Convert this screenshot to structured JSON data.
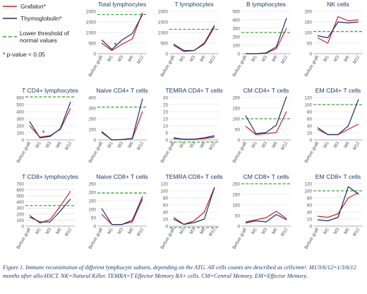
{
  "legend": {
    "grafalon": "Grafalon*",
    "thymoglobulin": "Thymoglobulin*",
    "threshold": "Lower threshold of normal values",
    "pvalue": "* p-value < 0.05"
  },
  "colors": {
    "grafalon": "#c0262d",
    "thymoglobulin": "#1f2f6b",
    "threshold": "#3aa635",
    "grid": "#d9d9d9",
    "axis": "#9a9a9a",
    "title": "#1f3864"
  },
  "caption": "Figure 1. Immune reconstitution of different lymphocyte subsets, depending on the ATG. All cells counts are described as cells/mm³. M1/3/6/12=1/3/6/12 months after allo-HSCT. NK=Natural Killer. TEMRA=T Effector Memory RA+ cells. CM=Central Memory. EM=Effector Memory.",
  "chart_data": [
    {
      "type": "line",
      "title": "Total lymphocytes",
      "categories": [
        "Before graft",
        "M1",
        "M3",
        "M6",
        "M12"
      ],
      "ylim": [
        0,
        2000
      ],
      "yticks": [
        0,
        500,
        1000,
        1500,
        2000
      ],
      "threshold": 1850,
      "star_at": 1,
      "series": [
        {
          "name": "Grafalon*",
          "values": [
            500,
            150,
            450,
            700,
            1950
          ]
        },
        {
          "name": "Thymoglobulin*",
          "values": [
            650,
            200,
            650,
            950,
            1850
          ]
        }
      ]
    },
    {
      "type": "line",
      "title": "T lymphocytes",
      "categories": [
        "Before graft",
        "M1",
        "M3",
        "M6",
        "M12"
      ],
      "ylim": [
        0,
        2000
      ],
      "yticks": [
        0,
        500,
        1000,
        1500,
        2000
      ],
      "threshold": 1150,
      "series": [
        {
          "name": "Grafalon*",
          "values": [
            400,
            100,
            150,
            450,
            1250
          ]
        },
        {
          "name": "Thymoglobulin*",
          "values": [
            450,
            150,
            150,
            500,
            1350
          ]
        }
      ]
    },
    {
      "type": "line",
      "title": "B lymphocytes",
      "categories": [
        "Before graft",
        "M1",
        "M3",
        "M6",
        "M12"
      ],
      "ylim": [
        0,
        500
      ],
      "yticks": [
        0,
        100,
        200,
        300,
        400,
        500
      ],
      "threshold": 250,
      "series": [
        {
          "name": "Grafalon*",
          "values": [
            0,
            0,
            5,
            60,
            300
          ]
        },
        {
          "name": "Thymoglobulin*",
          "values": [
            0,
            0,
            10,
            80,
            420
          ]
        }
      ]
    },
    {
      "type": "line",
      "title": "NK cells",
      "categories": [
        "Before graft",
        "M1",
        "M3",
        "M6",
        "M12"
      ],
      "ylim": [
        0,
        200
      ],
      "yticks": [
        0,
        50,
        100,
        150,
        200
      ],
      "threshold": 105,
      "series": [
        {
          "name": "Grafalon*",
          "values": [
            75,
            50,
            175,
            155,
            160
          ]
        },
        {
          "name": "Thymoglobulin*",
          "values": [
            85,
            75,
            150,
            145,
            150
          ]
        }
      ]
    },
    {
      "type": "line",
      "title": "T CD4+ lymphocytes",
      "categories": [
        "Before graft",
        "M1",
        "M3",
        "M6",
        "M12"
      ],
      "ylim": [
        0,
        600
      ],
      "yticks": [
        0,
        100,
        200,
        300,
        400,
        500,
        600
      ],
      "threshold": 610,
      "star_at": 1,
      "series": [
        {
          "name": "Grafalon*",
          "values": [
            200,
            40,
            60,
            150,
            450
          ]
        },
        {
          "name": "Thymoglobulin*",
          "values": [
            260,
            30,
            50,
            160,
            540
          ]
        }
      ]
    },
    {
      "type": "line",
      "title": "Naive CD4+ T cells",
      "categories": [
        "Before graft",
        "M1",
        "M3",
        "M6",
        "M12"
      ],
      "ylim": [
        0,
        400
      ],
      "yticks": [
        0,
        100,
        200,
        300,
        400
      ],
      "threshold": 310,
      "series": [
        {
          "name": "Grafalon*",
          "values": [
            70,
            0,
            5,
            10,
            270
          ]
        },
        {
          "name": "Thymoglobulin*",
          "values": [
            80,
            0,
            5,
            15,
            390
          ]
        }
      ]
    },
    {
      "type": "line",
      "title": "TEMRA CD4+ T cells",
      "categories": [
        "Before graft",
        "M1",
        "M3",
        "M6",
        "M12"
      ],
      "ylim": [
        0,
        30
      ],
      "yticks": [
        0,
        5,
        10,
        15,
        20,
        25,
        30
      ],
      "threshold": -1.5,
      "series": [
        {
          "name": "Grafalon*",
          "values": [
            1,
            0.5,
            0.5,
            1,
            2
          ]
        },
        {
          "name": "Thymoglobulin*",
          "values": [
            1.5,
            0.5,
            0.5,
            1.5,
            3
          ]
        }
      ]
    },
    {
      "type": "line",
      "title": "CM CD4+ T cells",
      "categories": [
        "Before graft",
        "M1",
        "M3",
        "M6",
        "M12"
      ],
      "ylim": [
        0,
        200
      ],
      "yticks": [
        0,
        50,
        100,
        150,
        200
      ],
      "threshold": 100,
      "series": [
        {
          "name": "Grafalon*",
          "values": [
            65,
            25,
            30,
            35,
            135
          ]
        },
        {
          "name": "Thymoglobulin*",
          "values": [
            115,
            30,
            35,
            70,
            205
          ]
        }
      ]
    },
    {
      "type": "line",
      "title": "EM CD4+ T cells",
      "categories": [
        "Before graft",
        "M1",
        "M3",
        "M6",
        "M12"
      ],
      "ylim": [
        0,
        120
      ],
      "yticks": [
        0,
        20,
        40,
        60,
        80,
        100,
        120
      ],
      "threshold": 100,
      "series": [
        {
          "name": "Grafalon*",
          "values": [
            30,
            15,
            15,
            30,
            45
          ]
        },
        {
          "name": "Thymoglobulin*",
          "values": [
            35,
            15,
            15,
            40,
            115
          ]
        }
      ]
    },
    {
      "type": "line",
      "title": "T CD8+ lymphocytes",
      "categories": [
        "Before graft",
        "M1",
        "M3",
        "M6",
        "M12"
      ],
      "ylim": [
        0,
        700
      ],
      "yticks": [
        0,
        100,
        200,
        300,
        400,
        500,
        600,
        700
      ],
      "threshold": 340,
      "series": [
        {
          "name": "Grafalon*",
          "values": [
            180,
            50,
            110,
            330,
            580
          ]
        },
        {
          "name": "Thymoglobulin*",
          "values": [
            150,
            70,
            70,
            250,
            450
          ]
        }
      ]
    },
    {
      "type": "line",
      "title": "Naive CD8+ T cells",
      "categories": [
        "Before graft",
        "M1",
        "M3",
        "M6",
        "M12"
      ],
      "ylim": [
        0,
        250
      ],
      "yticks": [
        0,
        50,
        100,
        150,
        200,
        250
      ],
      "threshold": 195,
      "series": [
        {
          "name": "Grafalon*",
          "values": [
            70,
            10,
            10,
            25,
            160
          ]
        },
        {
          "name": "Thymoglobulin*",
          "values": [
            105,
            10,
            10,
            35,
            175
          ]
        }
      ]
    },
    {
      "type": "line",
      "title": "TEMRA CD8+ T cells",
      "categories": [
        "Before graft",
        "M1",
        "M3",
        "M6",
        "M12"
      ],
      "ylim": [
        0,
        120
      ],
      "yticks": [
        0,
        20,
        40,
        60,
        80,
        100,
        120
      ],
      "threshold": -4,
      "series": [
        {
          "name": "Grafalon*",
          "values": [
            25,
            5,
            15,
            40,
            110
          ]
        },
        {
          "name": "Thymoglobulin*",
          "values": [
            20,
            5,
            10,
            20,
            110
          ]
        }
      ]
    },
    {
      "type": "line",
      "title": "CM CD8+ T cells",
      "categories": [
        "Before graft",
        "M1",
        "M3",
        "M6",
        "M12"
      ],
      "ylim": [
        0,
        200
      ],
      "yticks": [
        0,
        50,
        100,
        150,
        200
      ],
      "threshold": 200,
      "series": [
        {
          "name": "Grafalon*",
          "values": [
            20,
            30,
            40,
            70,
            35
          ]
        },
        {
          "name": "Thymoglobulin*",
          "values": [
            15,
            25,
            20,
            55,
            30
          ]
        }
      ]
    },
    {
      "type": "line",
      "title": "EM CD8+ T cells",
      "categories": [
        "Before graft",
        "M1",
        "M3",
        "M6",
        "M12"
      ],
      "ylim": [
        0,
        120
      ],
      "yticks": [
        0,
        20,
        40,
        60,
        80,
        100,
        120
      ],
      "threshold": 100,
      "series": [
        {
          "name": "Grafalon*",
          "values": [
            28,
            25,
            35,
            80,
            95
          ]
        },
        {
          "name": "Thymoglobulin*",
          "values": [
            18,
            15,
            25,
            112,
            90
          ]
        }
      ]
    }
  ]
}
